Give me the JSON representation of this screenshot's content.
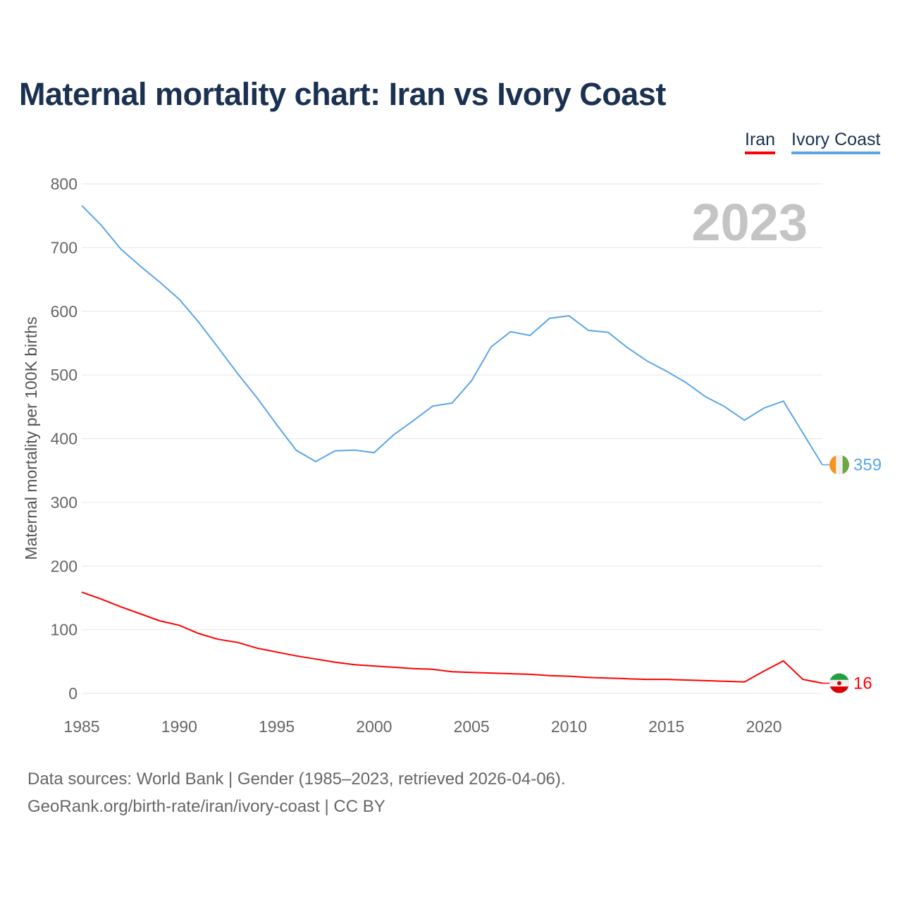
{
  "chart_data": {
    "type": "line",
    "title": "Maternal mortality chart: Iran vs Ivory Coast",
    "ylabel": "Maternal mortality per 100K births",
    "xlabel": "",
    "xlim": [
      1985,
      2023
    ],
    "ylim": [
      0,
      800
    ],
    "x_ticks": [
      1985,
      1990,
      1995,
      2000,
      2005,
      2010,
      2015,
      2020
    ],
    "y_ticks": [
      0,
      100,
      200,
      300,
      400,
      500,
      600,
      700,
      800
    ],
    "grid": true,
    "legend_position": "top-right",
    "year_annotation": "2023",
    "x": [
      1985,
      1986,
      1987,
      1988,
      1989,
      1990,
      1991,
      1992,
      1993,
      1994,
      1995,
      1996,
      1997,
      1998,
      1999,
      2000,
      2001,
      2002,
      2003,
      2004,
      2005,
      2006,
      2007,
      2008,
      2009,
      2010,
      2011,
      2012,
      2013,
      2014,
      2015,
      2016,
      2017,
      2018,
      2019,
      2020,
      2021,
      2022,
      2023
    ],
    "series": [
      {
        "name": "Iran",
        "color": "#ff0000",
        "end_label": "16",
        "values": [
          159,
          148,
          136,
          125,
          114,
          107,
          94,
          85,
          80,
          71,
          65,
          59,
          54,
          49,
          45,
          43,
          41,
          39,
          38,
          34,
          33,
          32,
          31,
          30,
          28,
          27,
          25,
          24,
          23,
          22,
          22,
          21,
          20,
          19,
          18,
          35,
          51,
          22,
          16
        ]
      },
      {
        "name": "Ivory Coast",
        "color": "#5aa5e8",
        "end_label": "359",
        "values": [
          766,
          735,
          698,
          671,
          646,
          619,
          583,
          543,
          502,
          464,
          422,
          382,
          364,
          381,
          382,
          378,
          406,
          428,
          451,
          456,
          491,
          544,
          568,
          562,
          589,
          593,
          570,
          567,
          543,
          522,
          506,
          488,
          466,
          450,
          429,
          448,
          459,
          409,
          359
        ]
      }
    ]
  },
  "footer": {
    "line1": "Data sources: World Bank | Gender (1985–2023, retrieved 2026-04-06).",
    "line2": "GeoRank.org/birth-rate/iran/ivory-coast | CC BY"
  }
}
